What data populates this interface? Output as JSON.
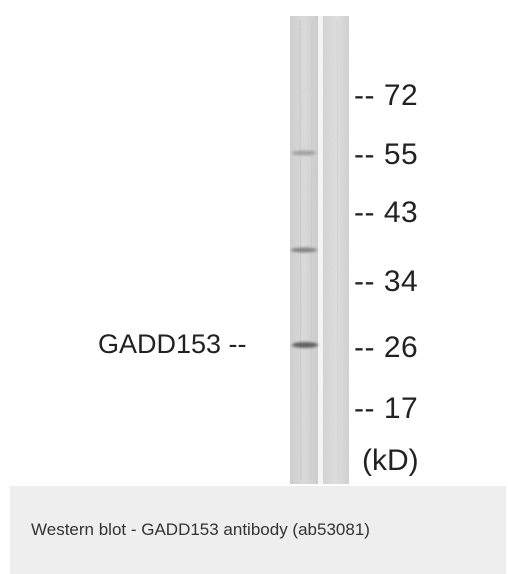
{
  "figure": {
    "markers": [
      "-- 72",
      "-- 55",
      "-- 43",
      "-- 34",
      "-- 26",
      "-- 17"
    ],
    "band_label": "GADD153 --",
    "unit_label": "(kD)"
  },
  "caption": {
    "text": "Western blot - GADD153 antibody (ab53081)"
  },
  "colors": {
    "lane_base": "#d6d6d6",
    "band": "#555555",
    "caption_bg": "#eeeeee",
    "text": "#222222"
  }
}
